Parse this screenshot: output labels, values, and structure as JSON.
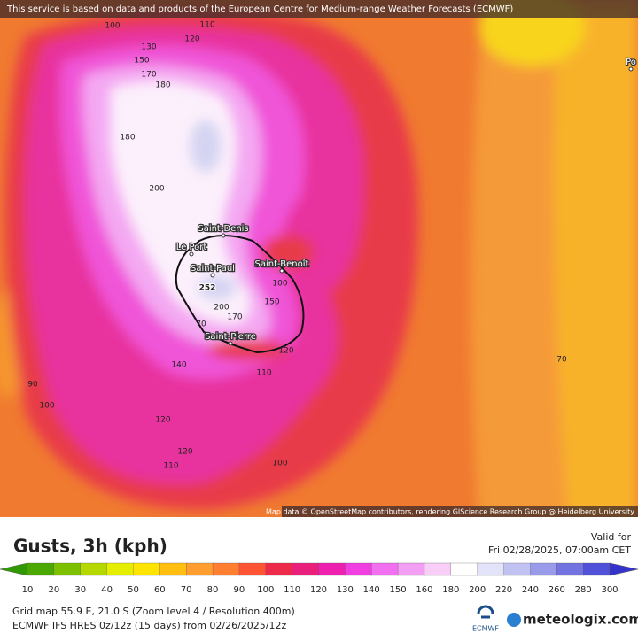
{
  "banner": "This service is based on data and products of the European Centre for Medium-range Weather Forecasts (ECMWF)",
  "map": {
    "contour_labels": [
      "100",
      "110",
      "130",
      "120",
      "150",
      "170",
      "180",
      "180",
      "200",
      "252",
      "200",
      "170",
      "150",
      "100",
      "120",
      "110",
      "140",
      "90",
      "100",
      "120",
      "120",
      "110",
      "100",
      "70",
      "70"
    ],
    "cities": [
      "Saint-Denis",
      "Le Port",
      "Saint-Paul",
      "Saint-Benoît",
      "Saint-Pierre",
      "Po"
    ],
    "attribution": "Map data © OpenStreetMap contributors, rendering GIScience Research Group @ Heidelberg University"
  },
  "legend": {
    "title": "Gusts, 3h (kph)",
    "valid_label": "Valid for",
    "valid_time": "Fri 02/28/2025, 07:00am CET",
    "ticks": [
      "10",
      "20",
      "30",
      "40",
      "50",
      "60",
      "70",
      "80",
      "90",
      "100",
      "110",
      "120",
      "130",
      "140",
      "150",
      "160",
      "180",
      "200",
      "220",
      "240",
      "260",
      "280",
      "300"
    ]
  },
  "footer": {
    "grid": "Grid map 55.9 E, 21.0 S (Zoom level 4 / Resolution 400m)",
    "model": "ECMWF IFS HRES 0z/12z (15 days) from  02/26/2025/12z",
    "ecmwf": "ECMWF",
    "brand": "meteologix.com"
  }
}
